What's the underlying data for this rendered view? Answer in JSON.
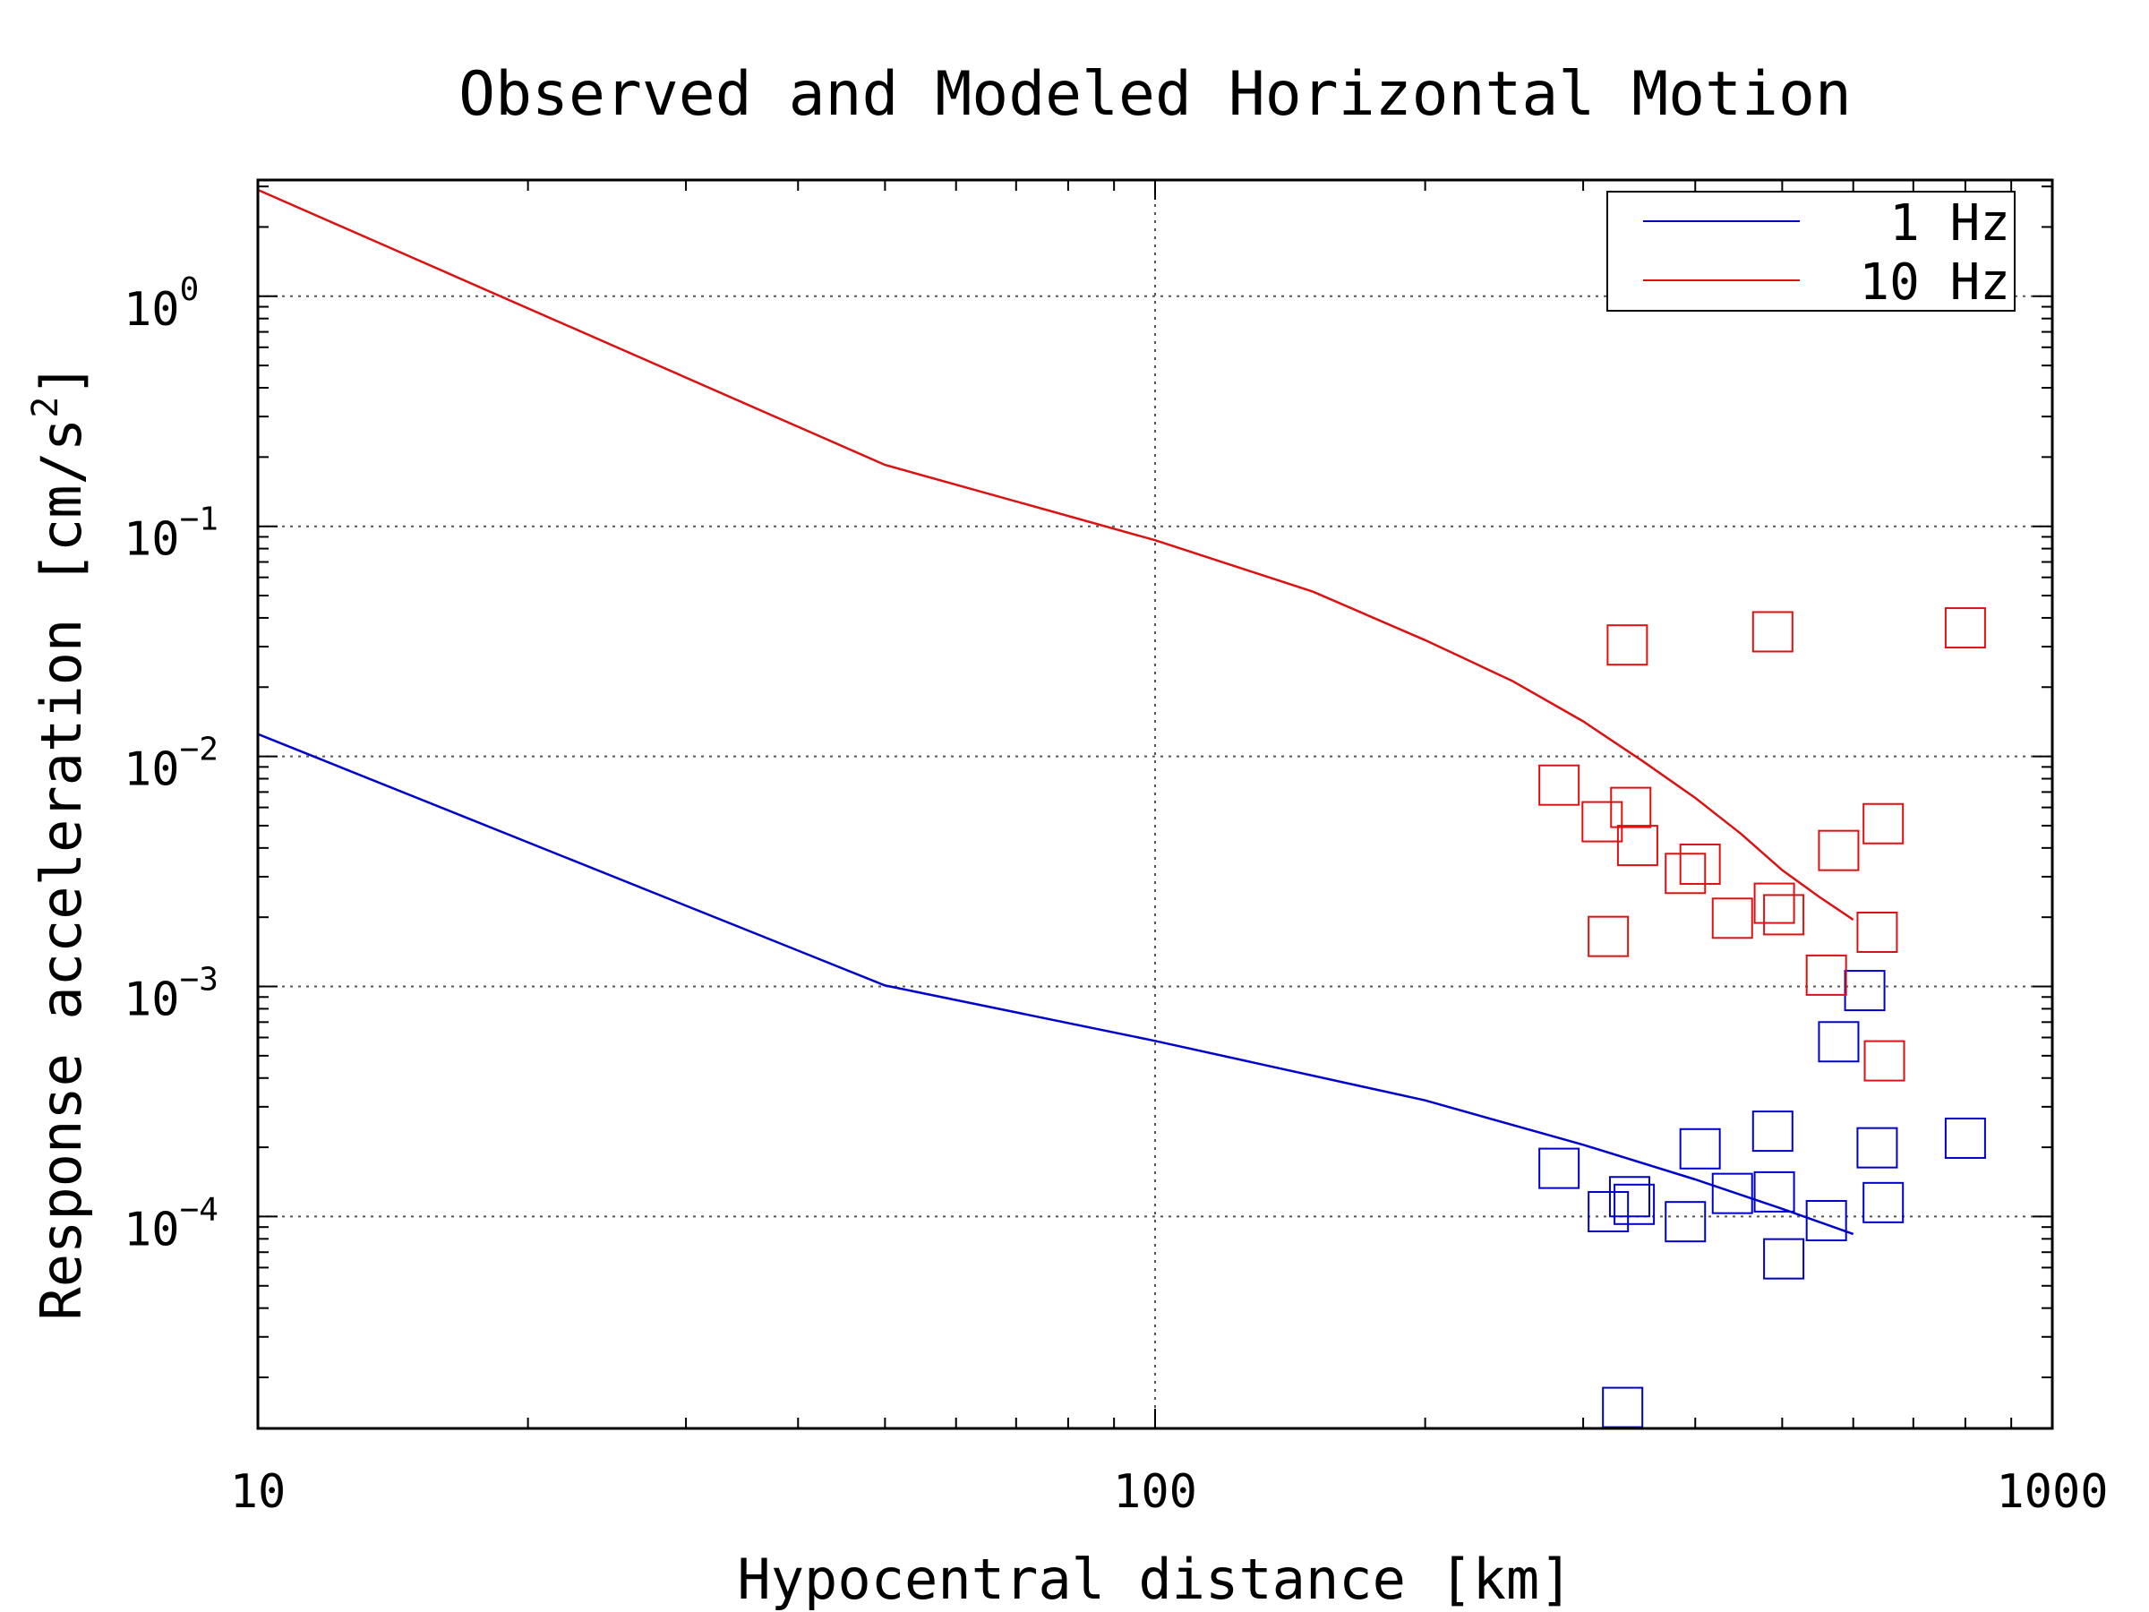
{
  "chart_data": {
    "type": "scatter",
    "title": "Observed and Modeled Horizontal Motion",
    "xlabel": "Hypocentral distance [km]",
    "ylabel_main": "Response acceleration [cm/s",
    "ylabel_sup": "2",
    "ylabel_end": "]",
    "xscale": "log",
    "yscale": "log",
    "xlim": [
      10,
      1000
    ],
    "ylim": [
      1.2e-05,
      3.2
    ],
    "grid": true,
    "legend_position": "top-right",
    "x_ticks": [
      {
        "value": 10,
        "label": "10"
      },
      {
        "value": 100,
        "label": "100"
      },
      {
        "value": 1000,
        "label": "1000"
      }
    ],
    "y_ticks": [
      {
        "value": 1,
        "base": "10",
        "exp": "0"
      },
      {
        "value": 0.1,
        "base": "10",
        "exp": "−1"
      },
      {
        "value": 0.01,
        "base": "10",
        "exp": "−2"
      },
      {
        "value": 0.001,
        "base": "10",
        "exp": "−3"
      },
      {
        "value": 0.0001,
        "base": "10",
        "exp": "−4"
      }
    ],
    "series": [
      {
        "name": "1 Hz",
        "color": "#0000cc",
        "line": {
          "x": [
            10,
            50,
            100,
            200,
            300,
            400,
            500,
            600
          ],
          "y": [
            0.0125,
            0.00101,
            0.00058,
            0.00032,
            0.000205,
            0.000145,
            0.000108,
            8.4e-05
          ]
        },
        "points": {
          "x": [
            282,
            320,
            332,
            338,
            342,
            390,
            405,
            440,
            488,
            490,
            502,
            560,
            578,
            618,
            638,
            648,
            800
          ],
          "y": [
            0.000162,
            0.000105,
            1.48e-05,
            0.000122,
            0.000113,
            9.5e-05,
            0.000197,
            0.000126,
            0.000235,
            0.000128,
            6.55e-05,
            9.6e-05,
            0.000575,
            0.00096,
            0.000199,
            0.000115,
            0.000219
          ]
        }
      },
      {
        "name": "10 Hz",
        "color": "#dd1111",
        "line": {
          "x": [
            10,
            50,
            100,
            150,
            200,
            250,
            300,
            350,
            400,
            450,
            500,
            550,
            600
          ],
          "y": [
            2.9,
            0.185,
            0.087,
            0.052,
            0.032,
            0.0213,
            0.0142,
            0.0095,
            0.0066,
            0.0046,
            0.0032,
            0.00245,
            0.00195
          ]
        },
        "points": {
          "x": [
            282,
            315,
            320,
            336,
            339,
            345,
            390,
            405,
            440,
            488,
            490,
            502,
            560,
            578,
            638,
            648,
            650,
            800
          ],
          "y": [
            0.0075,
            0.0052,
            0.00165,
            0.0305,
            0.006,
            0.0041,
            0.0031,
            0.0034,
            0.00198,
            0.0348,
            0.0023,
            0.00205,
            0.00112,
            0.0039,
            0.00172,
            0.0051,
            0.000475,
            0.0362
          ]
        }
      }
    ]
  }
}
